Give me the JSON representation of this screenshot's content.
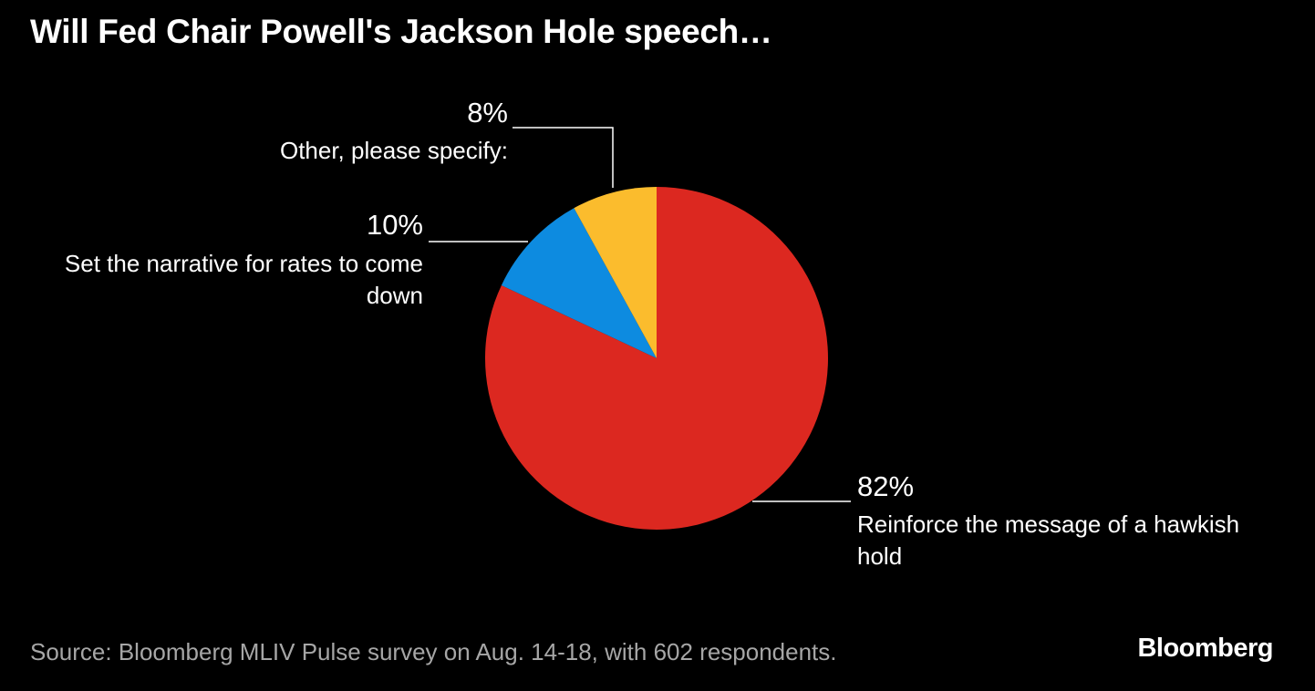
{
  "title": "Will Fed Chair Powell's Jackson Hole speech…",
  "chart_data": {
    "type": "pie",
    "title": "Will Fed Chair Powell's Jackson Hole speech…",
    "slices": [
      {
        "label": "Reinforce the message of a hawkish hold",
        "value": 82,
        "value_label": "82%",
        "color": "#dc2820"
      },
      {
        "label": "Set the narrative for rates to come down",
        "value": 10,
        "value_label": "10%",
        "color": "#0d8be0"
      },
      {
        "label": "Other, please specify:",
        "value": 8,
        "value_label": "8%",
        "color": "#fbbc2d"
      }
    ],
    "start": "12 o'clock",
    "direction": "clockwise"
  },
  "source": "Source: Bloomberg MLIV Pulse survey on Aug. 14-18, with 602 respondents.",
  "brand": "Bloomberg"
}
